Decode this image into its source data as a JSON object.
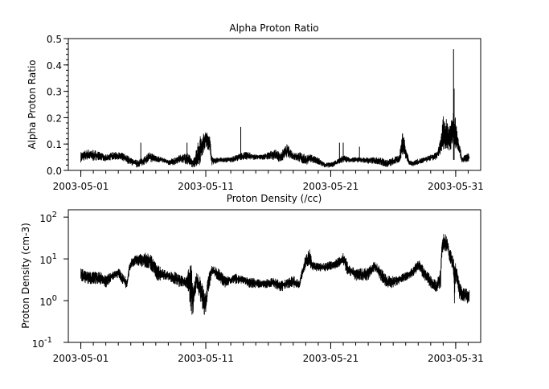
{
  "chart_data": [
    {
      "type": "line",
      "title": "Alpha Proton Ratio",
      "xlabel": "",
      "ylabel": "Alpha Proton Ratio",
      "xlim": [
        "2003-04-30T00:00",
        "2003-06-02T00:00"
      ],
      "ylim": [
        0,
        0.5
      ],
      "yscale": "linear",
      "grid": false,
      "line_color": "#000000",
      "xticks": [
        "2003-05-01",
        "2003-05-11",
        "2003-05-21",
        "2003-05-31"
      ],
      "yticks": [
        "0.0",
        "0.1",
        "0.2",
        "0.3",
        "0.4",
        "0.5"
      ],
      "envelope_columns": [
        "time",
        "min",
        "max"
      ],
      "envelope": [
        [
          "2003-05-01T00:00",
          0.03,
          0.07
        ],
        [
          "2003-05-01T12:00",
          0.04,
          0.08
        ],
        [
          "2003-05-02T00:00",
          0.035,
          0.08
        ],
        [
          "2003-05-02T12:00",
          0.04,
          0.07
        ],
        [
          "2003-05-03T00:00",
          0.03,
          0.06
        ],
        [
          "2003-05-03T12:00",
          0.04,
          0.07
        ],
        [
          "2003-05-04T00:00",
          0.04,
          0.07
        ],
        [
          "2003-05-04T12:00",
          0.03,
          0.065
        ],
        [
          "2003-05-05T00:00",
          0.02,
          0.05
        ],
        [
          "2003-05-05T12:00",
          0.01,
          0.04
        ],
        [
          "2003-05-06T00:00",
          0.02,
          0.05
        ],
        [
          "2003-05-06T12:00",
          0.03,
          0.07
        ],
        [
          "2003-05-07T00:00",
          0.03,
          0.06
        ],
        [
          "2003-05-07T12:00",
          0.03,
          0.05
        ],
        [
          "2003-05-08T00:00",
          0.02,
          0.04
        ],
        [
          "2003-05-08T12:00",
          0.02,
          0.05
        ],
        [
          "2003-05-09T00:00",
          0.03,
          0.06
        ],
        [
          "2003-05-09T12:00",
          0.02,
          0.07
        ],
        [
          "2003-05-10T00:00",
          0.01,
          0.04
        ],
        [
          "2003-05-10T12:00",
          0.02,
          0.13
        ],
        [
          "2003-05-11T00:00",
          0.09,
          0.15
        ],
        [
          "2003-05-11T07:12",
          0.07,
          0.14
        ],
        [
          "2003-05-11T12:00",
          0.02,
          0.05
        ],
        [
          "2003-05-12T00:00",
          0.03,
          0.05
        ],
        [
          "2003-05-12T12:00",
          0.03,
          0.05
        ],
        [
          "2003-05-13T00:00",
          0.03,
          0.05
        ],
        [
          "2003-05-14T00:00",
          0.04,
          0.07
        ],
        [
          "2003-05-14T12:00",
          0.04,
          0.07
        ],
        [
          "2003-05-15T00:00",
          0.04,
          0.06
        ],
        [
          "2003-05-15T12:00",
          0.04,
          0.06
        ],
        [
          "2003-05-16T00:00",
          0.04,
          0.07
        ],
        [
          "2003-05-16T12:00",
          0.04,
          0.08
        ],
        [
          "2003-05-17T00:00",
          0.03,
          0.07
        ],
        [
          "2003-05-17T12:00",
          0.05,
          0.1
        ],
        [
          "2003-05-18T00:00",
          0.04,
          0.07
        ],
        [
          "2003-05-18T12:00",
          0.03,
          0.07
        ],
        [
          "2003-05-19T00:00",
          0.02,
          0.06
        ],
        [
          "2003-05-19T12:00",
          0.03,
          0.06
        ],
        [
          "2003-05-20T00:00",
          0.02,
          0.05
        ],
        [
          "2003-05-20T12:00",
          0.01,
          0.03
        ],
        [
          "2003-05-21T00:00",
          0.01,
          0.03
        ],
        [
          "2003-05-21T12:00",
          0.02,
          0.04
        ],
        [
          "2003-05-22T00:00",
          0.03,
          0.06
        ],
        [
          "2003-05-22T12:00",
          0.03,
          0.05
        ],
        [
          "2003-05-23T00:00",
          0.03,
          0.05
        ],
        [
          "2003-05-23T12:00",
          0.03,
          0.05
        ],
        [
          "2003-05-24T00:00",
          0.025,
          0.05
        ],
        [
          "2003-05-24T12:00",
          0.025,
          0.05
        ],
        [
          "2003-05-25T00:00",
          0.02,
          0.05
        ],
        [
          "2003-05-25T12:00",
          0.01,
          0.04
        ],
        [
          "2003-05-26T00:00",
          0.02,
          0.05
        ],
        [
          "2003-05-26T12:00",
          0.03,
          0.06
        ],
        [
          "2003-05-26T19:12",
          0.06,
          0.17
        ],
        [
          "2003-05-27T00:00",
          0.04,
          0.09
        ],
        [
          "2003-05-27T07:12",
          0.02,
          0.04
        ],
        [
          "2003-05-27T12:00",
          0.015,
          0.035
        ],
        [
          "2003-05-28T00:00",
          0.02,
          0.045
        ],
        [
          "2003-05-28T12:00",
          0.03,
          0.05
        ],
        [
          "2003-05-29T00:00",
          0.035,
          0.06
        ],
        [
          "2003-05-29T12:00",
          0.04,
          0.07
        ],
        [
          "2003-05-29T19:12",
          0.06,
          0.12
        ],
        [
          "2003-05-30T00:00",
          0.08,
          0.21
        ],
        [
          "2003-05-30T12:00",
          0.07,
          0.18
        ],
        [
          "2003-05-30T19:12",
          0.09,
          0.22
        ],
        [
          "2003-05-31T00:00",
          0.08,
          0.2
        ],
        [
          "2003-05-31T07:12",
          0.06,
          0.11
        ],
        [
          "2003-05-31T12:00",
          0.03,
          0.05
        ],
        [
          "2003-06-01T00:00",
          0.03,
          0.07
        ],
        [
          "2003-06-01T02:24",
          0.03,
          0.06
        ]
      ],
      "spikes": [
        [
          "2003-05-05T19:12",
          0.105
        ],
        [
          "2003-05-09T12:00",
          0.105
        ],
        [
          "2003-05-13T19:12",
          0.165
        ],
        [
          "2003-05-21T16:48",
          0.105
        ],
        [
          "2003-05-22T00:00",
          0.105
        ],
        [
          "2003-05-23T07:12",
          0.09
        ],
        [
          "2003-05-30T19:55",
          0.46
        ],
        [
          "2003-05-30T21:00",
          0.31
        ]
      ]
    },
    {
      "type": "line",
      "title": "Proton Density (/cc)",
      "xlabel": "",
      "ylabel": "Proton Density (cm-3)",
      "xlim": [
        "2003-04-30T00:00",
        "2003-06-02T00:00"
      ],
      "ylim": [
        0.1,
        150
      ],
      "yscale": "log",
      "grid": false,
      "line_color": "#000000",
      "xticks": [
        "2003-05-01",
        "2003-05-11",
        "2003-05-21",
        "2003-05-31"
      ],
      "yticks": [
        {
          "base": "10",
          "exp": "-1"
        },
        {
          "base": "10",
          "exp": "0"
        },
        {
          "base": "10",
          "exp": "1"
        },
        {
          "base": "10",
          "exp": "2"
        }
      ],
      "envelope_columns": [
        "time",
        "min",
        "max"
      ],
      "envelope": [
        [
          "2003-05-01T00:00",
          3,
          6
        ],
        [
          "2003-05-01T12:00",
          2.5,
          5
        ],
        [
          "2003-05-02T00:00",
          2.5,
          5
        ],
        [
          "2003-05-02T12:00",
          2.5,
          5
        ],
        [
          "2003-05-03T00:00",
          2,
          4
        ],
        [
          "2003-05-03T12:00",
          3,
          5
        ],
        [
          "2003-05-04T00:00",
          3.5,
          6
        ],
        [
          "2003-05-04T12:00",
          2,
          4
        ],
        [
          "2003-05-04T16:48",
          2,
          3
        ],
        [
          "2003-05-05T00:00",
          6,
          10
        ],
        [
          "2003-05-05T12:00",
          7,
          13
        ],
        [
          "2003-05-06T00:00",
          6,
          14
        ],
        [
          "2003-05-06T12:00",
          6,
          14
        ],
        [
          "2003-05-07T00:00",
          3,
          8
        ],
        [
          "2003-05-07T12:00",
          3,
          6
        ],
        [
          "2003-05-08T00:00",
          3,
          5
        ],
        [
          "2003-05-08T12:00",
          2.5,
          5
        ],
        [
          "2003-05-09T00:00",
          2,
          4
        ],
        [
          "2003-05-09T12:00",
          2,
          4
        ],
        [
          "2003-05-09T19:12",
          0.4,
          9
        ],
        [
          "2003-05-10T00:00",
          0.5,
          2
        ],
        [
          "2003-05-10T07:12",
          2,
          5
        ],
        [
          "2003-05-10T12:00",
          1,
          4
        ],
        [
          "2003-05-10T19:12",
          0.5,
          2
        ],
        [
          "2003-05-11T00:00",
          0.4,
          1.5
        ],
        [
          "2003-05-11T07:12",
          2,
          5
        ],
        [
          "2003-05-11T12:00",
          4,
          7
        ],
        [
          "2003-05-12T00:00",
          3,
          6
        ],
        [
          "2003-05-12T12:00",
          2,
          4
        ],
        [
          "2003-05-13T00:00",
          2.5,
          4
        ],
        [
          "2003-05-13T12:00",
          2.5,
          4.5
        ],
        [
          "2003-05-14T00:00",
          2.5,
          4
        ],
        [
          "2003-05-14T12:00",
          2,
          3.5
        ],
        [
          "2003-05-15T00:00",
          2,
          3.5
        ],
        [
          "2003-05-15T12:00",
          2,
          3
        ],
        [
          "2003-05-16T00:00",
          2,
          3.5
        ],
        [
          "2003-05-16T12:00",
          2,
          3.5
        ],
        [
          "2003-05-17T00:00",
          1.5,
          3
        ],
        [
          "2003-05-17T12:00",
          2,
          3.5
        ],
        [
          "2003-05-18T00:00",
          2,
          4
        ],
        [
          "2003-05-18T12:00",
          2,
          3
        ],
        [
          "2003-05-18T19:12",
          4,
          8
        ],
        [
          "2003-05-19T00:00",
          6,
          12
        ],
        [
          "2003-05-19T07:12",
          7,
          18
        ],
        [
          "2003-05-19T12:00",
          5,
          9
        ],
        [
          "2003-05-20T00:00",
          5,
          8
        ],
        [
          "2003-05-20T12:00",
          5,
          8
        ],
        [
          "2003-05-21T00:00",
          5,
          9
        ],
        [
          "2003-05-21T12:00",
          6,
          10
        ],
        [
          "2003-05-22T00:00",
          7,
          14
        ],
        [
          "2003-05-22T07:12",
          4,
          10
        ],
        [
          "2003-05-22T12:00",
          4,
          7
        ],
        [
          "2003-05-23T00:00",
          3,
          6
        ],
        [
          "2003-05-23T12:00",
          3,
          6
        ],
        [
          "2003-05-24T00:00",
          3,
          6
        ],
        [
          "2003-05-24T12:00",
          5,
          9
        ],
        [
          "2003-05-25T00:00",
          3,
          6
        ],
        [
          "2003-05-25T12:00",
          2,
          4
        ],
        [
          "2003-05-26T00:00",
          2,
          4
        ],
        [
          "2003-05-26T12:00",
          2.5,
          4
        ],
        [
          "2003-05-27T00:00",
          3,
          5
        ],
        [
          "2003-05-27T12:00",
          3.5,
          6
        ],
        [
          "2003-05-28T00:00",
          5,
          10
        ],
        [
          "2003-05-28T12:00",
          3,
          6
        ],
        [
          "2003-05-29T00:00",
          2,
          4
        ],
        [
          "2003-05-29T12:00",
          1.5,
          3
        ],
        [
          "2003-05-29T19:12",
          2,
          6
        ],
        [
          "2003-05-30T00:00",
          15,
          45
        ],
        [
          "2003-05-30T07:12",
          15,
          35
        ],
        [
          "2003-05-30T12:00",
          8,
          20
        ],
        [
          "2003-05-30T19:12",
          5,
          12
        ],
        [
          "2003-05-30T21:36",
          0.45,
          8
        ],
        [
          "2003-05-31T00:00",
          3,
          8
        ],
        [
          "2003-05-31T07:12",
          1,
          3
        ],
        [
          "2003-05-31T12:00",
          1,
          2
        ],
        [
          "2003-06-01T00:00",
          0.8,
          2
        ],
        [
          "2003-06-01T02:24",
          1,
          2
        ]
      ],
      "spikes": []
    }
  ]
}
